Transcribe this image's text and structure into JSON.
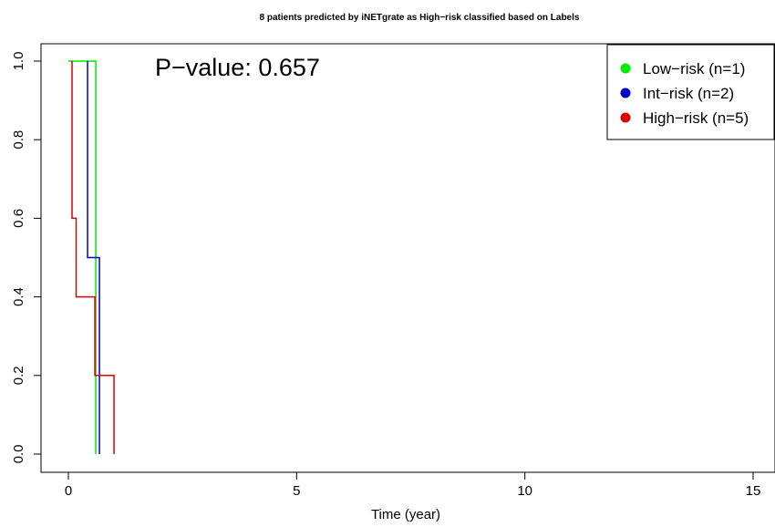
{
  "chart_data": {
    "type": "line",
    "subtype": "step",
    "title": "8 patients predicted by iNETgrate as High−risk classified based on Labels",
    "xlabel": "Time (year)",
    "ylabel": "",
    "xlim": [
      0,
      15
    ],
    "ylim": [
      0,
      1
    ],
    "x_ticks": [
      0,
      5,
      10,
      15
    ],
    "y_ticks": [
      0.0,
      0.2,
      0.4,
      0.6,
      0.8,
      1.0
    ],
    "x_tick_labels": [
      "0",
      "5",
      "10",
      "15"
    ],
    "y_tick_labels": [
      "0.0",
      "0.2",
      "0.4",
      "0.6",
      "0.8",
      "1.0"
    ],
    "annotation": "P−value: 0.657",
    "legend_position": "top-right",
    "grid": false,
    "series": [
      {
        "name": "Low−risk (n=1)",
        "color": "#00ee00",
        "steps": [
          [
            0,
            1.0
          ],
          [
            0.6,
            1.0
          ],
          [
            0.6,
            0.0
          ]
        ]
      },
      {
        "name": "Int−risk (n=2)",
        "color": "#0000cc",
        "steps": [
          [
            0.42,
            1.0
          ],
          [
            0.42,
            0.5
          ],
          [
            0.68,
            0.5
          ],
          [
            0.68,
            0.0
          ]
        ]
      },
      {
        "name": "High−risk (n=5)",
        "color": "#dd0000",
        "steps": [
          [
            0.08,
            1.0
          ],
          [
            0.08,
            0.6
          ],
          [
            0.17,
            0.6
          ],
          [
            0.17,
            0.4
          ],
          [
            0.58,
            0.4
          ],
          [
            0.58,
            0.2
          ],
          [
            1.0,
            0.2
          ],
          [
            1.0,
            0.0
          ]
        ]
      }
    ]
  }
}
